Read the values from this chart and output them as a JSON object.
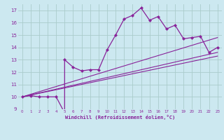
{
  "xlabel": "Windchill (Refroidissement éolien,°C)",
  "background_color": "#cce8f0",
  "grid_color": "#aacccc",
  "line_color": "#882299",
  "xlim": [
    -0.5,
    23.5
  ],
  "ylim": [
    9.0,
    17.5
  ],
  "xticks": [
    0,
    1,
    2,
    3,
    4,
    5,
    6,
    7,
    8,
    9,
    10,
    11,
    12,
    13,
    14,
    15,
    16,
    17,
    18,
    19,
    20,
    21,
    22,
    23
  ],
  "yticks": [
    9,
    10,
    11,
    12,
    13,
    14,
    15,
    16,
    17
  ],
  "curve_x": [
    0,
    1,
    2,
    3,
    4,
    5,
    5,
    6,
    7,
    8,
    9,
    10,
    11,
    12,
    13,
    14,
    15,
    16,
    17,
    18,
    19,
    20,
    21,
    22,
    23
  ],
  "curve_y": [
    10.0,
    10.1,
    10.0,
    10.0,
    10.0,
    8.7,
    13.0,
    12.4,
    12.1,
    12.2,
    12.2,
    13.8,
    15.0,
    16.3,
    16.6,
    17.2,
    16.2,
    16.5,
    15.5,
    15.8,
    14.7,
    14.8,
    14.9,
    13.6,
    14.0
  ],
  "line1_x": [
    0,
    23
  ],
  "line1_y": [
    10.0,
    14.8
  ],
  "line2_x": [
    0,
    23
  ],
  "line2_y": [
    10.0,
    13.6
  ],
  "line3_x": [
    0,
    23
  ],
  "line3_y": [
    10.0,
    13.3
  ],
  "figsize": [
    3.2,
    2.0
  ],
  "dpi": 100
}
